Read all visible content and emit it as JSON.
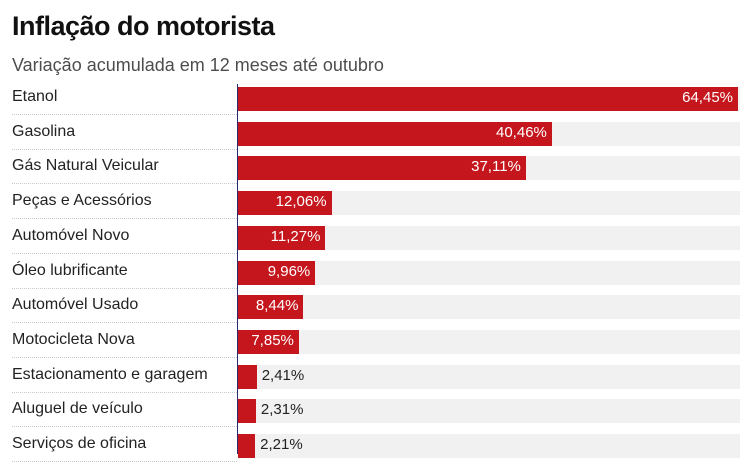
{
  "chart_data": {
    "type": "bar",
    "orientation": "horizontal",
    "title": "Inflação do motorista",
    "subtitle": "Variação acumulada em 12 meses até outubro",
    "xlabel": "",
    "ylabel": "",
    "xlim": [
      0,
      64.45
    ],
    "unit": "%",
    "categories": [
      "Etanol",
      "Gasolina",
      "Gás Natural Veicular",
      "Peças e Acessórios",
      "Automóvel Novo",
      "Óleo lubrificante",
      "Automóvel Usado",
      "Motocicleta Nova",
      "Estacionamento e garagem",
      "Aluguel de veículo",
      "Serviços de oficina"
    ],
    "values": [
      64.45,
      40.46,
      37.11,
      12.06,
      11.27,
      9.96,
      8.44,
      7.85,
      2.41,
      2.31,
      2.21
    ],
    "value_labels": [
      "64,45%",
      "40,46%",
      "37,11%",
      "12,06%",
      "11,27%",
      "9,96%",
      "8,44%",
      "7,85%",
      "2,41%",
      "2,31%",
      "2,21%"
    ],
    "bar_color": "#c4161c",
    "track_color": "#f1f1f1"
  }
}
